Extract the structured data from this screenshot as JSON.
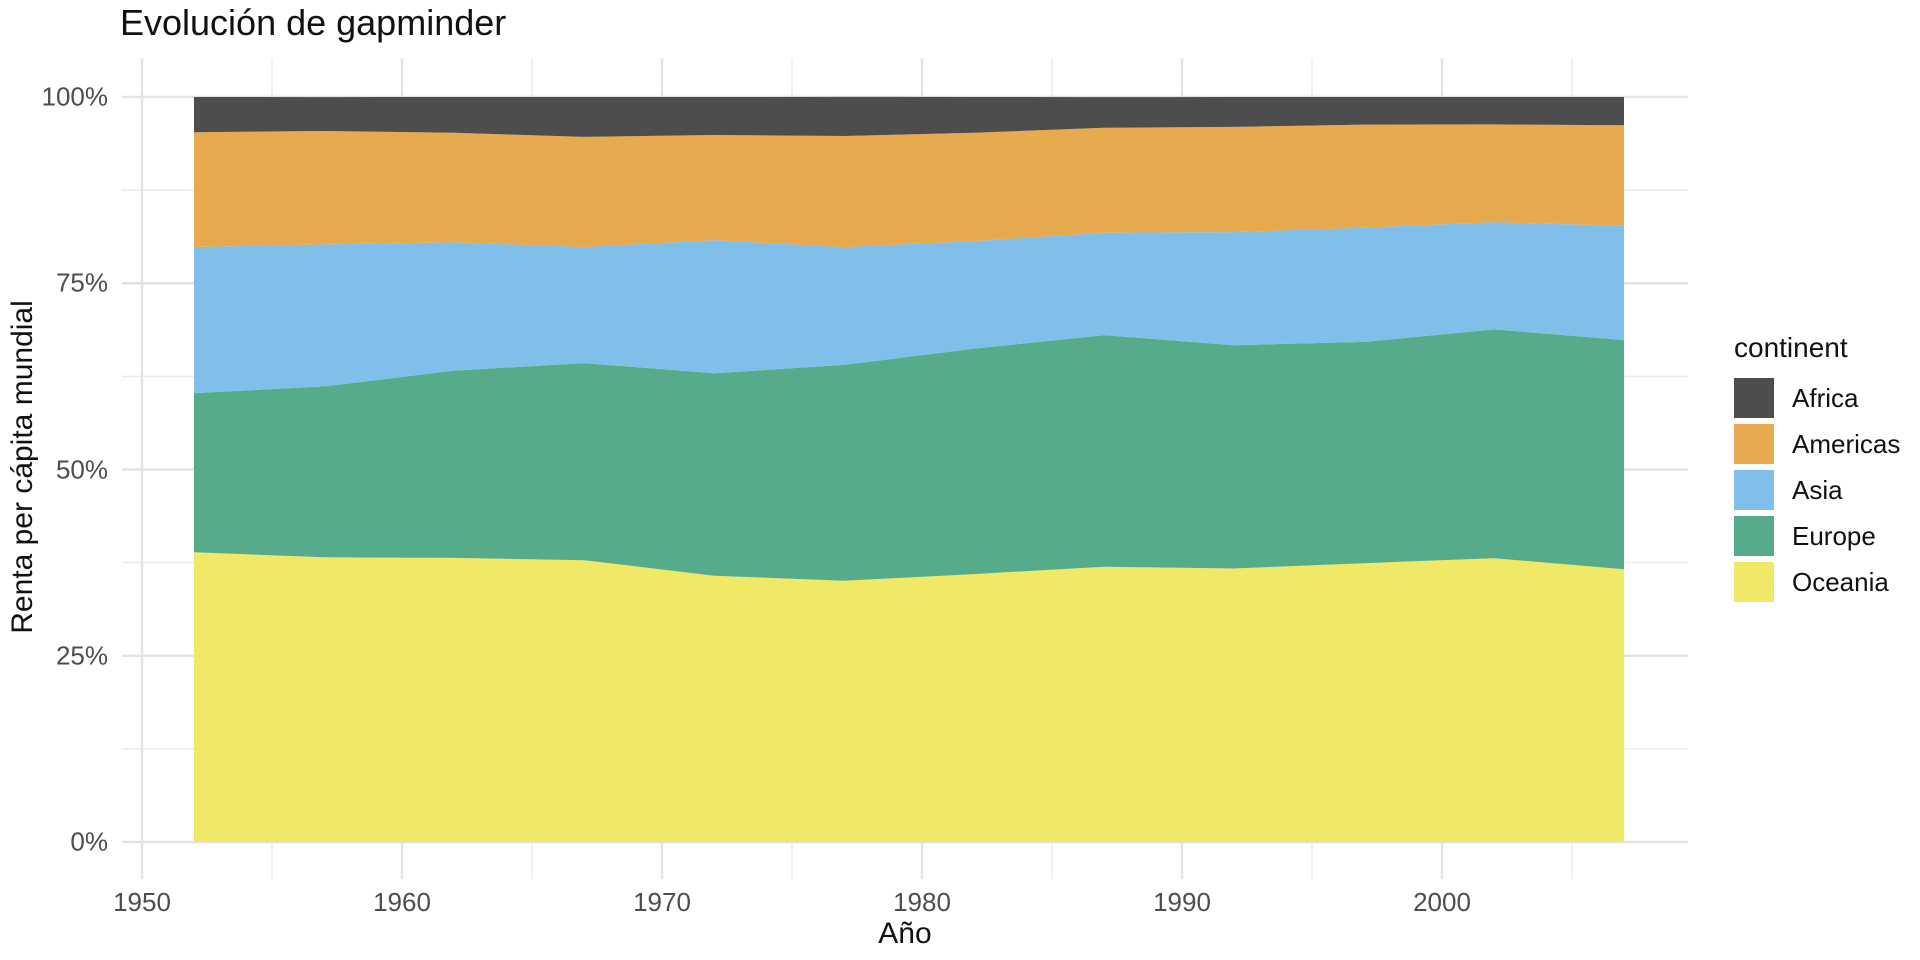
{
  "header": {
    "title": "Evolución de gapminder"
  },
  "axes": {
    "x": {
      "title": "Año"
    },
    "y": {
      "title": "Renta per cápita mundial"
    }
  },
  "legend": {
    "title": "continent",
    "items": [
      "Africa",
      "Americas",
      "Asia",
      "Europe",
      "Oceania"
    ]
  },
  "colors": {
    "Africa": "#4d4d4d",
    "Americas": "#e7aa4f",
    "Asia": "#80bfe9",
    "Europe": "#56ac8a",
    "Oceania": "#f0e968",
    "grid_major": "#e3e3e3",
    "grid_minor": "#ebebeb",
    "tick_text": "#4d4d4d",
    "title_text": "#111111"
  },
  "chart_data": {
    "type": "area",
    "variant": "stacked-filled-100pct",
    "title": "Evolución de gapminder",
    "xlabel": "Año",
    "ylabel": "Renta per cápita mundial",
    "x": [
      1952,
      1957,
      1962,
      1967,
      1972,
      1977,
      1982,
      1987,
      1992,
      1997,
      2002,
      2007
    ],
    "xlim": [
      1948.25,
      2010.75
    ],
    "ylim_percent": [
      0,
      100
    ],
    "x_ticks": [
      1950,
      1960,
      1970,
      1980,
      1990,
      2000
    ],
    "x_minor_ticks": [
      1955,
      1965,
      1975,
      1985,
      1995,
      2005
    ],
    "y_ticks": [
      {
        "value": 0,
        "label": "0%"
      },
      {
        "value": 25,
        "label": "25%"
      },
      {
        "value": 50,
        "label": "50%"
      },
      {
        "value": 75,
        "label": "75%"
      },
      {
        "value": 100,
        "label": "100%"
      }
    ],
    "y_minor_ticks": [
      12.5,
      37.5,
      62.5,
      87.5
    ],
    "grid": true,
    "legend_position": "right",
    "stack_order_note": "series listed bottom-to-top; legend shows reverse (top-to-bottom alphabetical)",
    "series": [
      {
        "name": "Oceania",
        "color": "#f0e968",
        "values_percent": [
          38.89,
          38.21,
          38.14,
          37.82,
          35.75,
          35.06,
          35.96,
          36.94,
          36.71,
          37.42,
          38.1,
          36.61
        ]
      },
      {
        "name": "Europe",
        "color": "#56ac8a",
        "values_percent": [
          21.37,
          22.94,
          25.13,
          26.46,
          27.18,
          28.98,
          30.27,
          31.1,
          29.97,
          29.71,
          30.7,
          30.77
        ]
      },
      {
        "name": "Asia",
        "color": "#80bfe9",
        "values_percent": [
          19.61,
          19.07,
          17.21,
          15.58,
          17.83,
          15.81,
          14.41,
          13.75,
          15.18,
          15.32,
          14.39,
          15.32
        ]
      },
      {
        "name": "Americas",
        "color": "#e7aa4f",
        "values_percent": [
          15.4,
          15.21,
          14.72,
          14.79,
          14.14,
          14.91,
          14.55,
          14.08,
          14.13,
          13.85,
          13.13,
          13.51
        ]
      },
      {
        "name": "Africa",
        "color": "#4d4d4d",
        "values_percent": [
          4.73,
          4.56,
          4.8,
          5.35,
          5.1,
          5.25,
          4.81,
          4.12,
          4.01,
          3.7,
          3.68,
          3.79
        ]
      }
    ]
  }
}
